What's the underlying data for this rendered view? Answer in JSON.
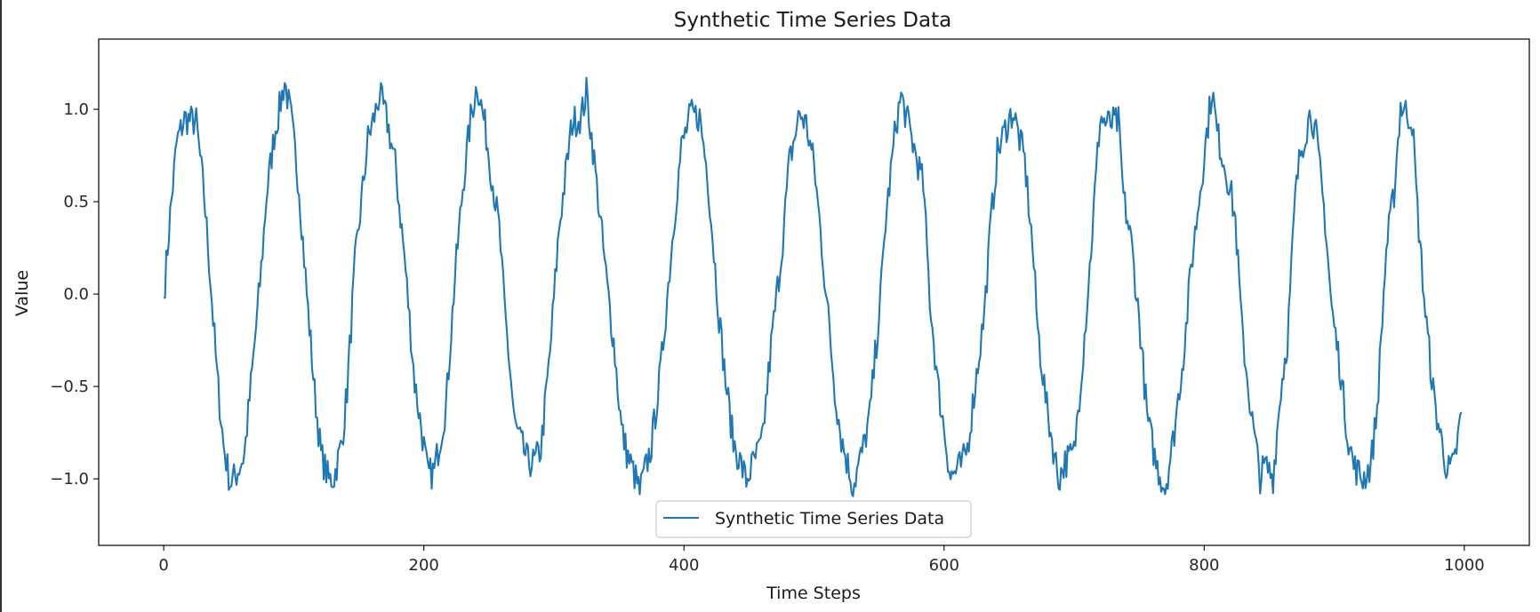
{
  "chart_data": {
    "type": "line",
    "title": "Synthetic Time Series Data",
    "xlabel": "Time Steps",
    "ylabel": "Value",
    "xlim": [
      -50,
      1050
    ],
    "ylim": [
      -1.36,
      1.38
    ],
    "xticks": [
      0,
      200,
      400,
      600,
      800,
      1000
    ],
    "yticks": [
      1.0,
      0.5,
      0.0,
      -0.5,
      -1.0
    ],
    "ytick_labels": [
      "1.0",
      "0.5",
      "0.0",
      "−0.5",
      "−1.0"
    ],
    "grid": false,
    "legend_position": "lower center",
    "series": [
      {
        "name": "Synthetic Time Series Data",
        "color": "#1f77b4",
        "period": 62.8,
        "x": [
          0,
          5,
          10,
          16,
          25,
          31,
          35,
          41,
          46,
          51,
          55,
          62,
          68,
          75,
          79,
          85,
          93,
          98,
          104,
          110,
          116,
          121,
          127,
          131,
          137,
          141,
          147,
          157,
          162,
          166,
          172,
          178,
          185,
          193,
          199,
          203,
          208,
          217,
          224,
          230,
          236,
          241,
          247,
          251,
          258,
          262,
          270,
          280,
          285,
          290,
          297,
          304,
          314,
          321,
          325,
          330,
          341,
          346,
          352,
          356,
          362,
          366,
          375,
          382,
          390,
          394,
          398,
          405,
          412,
          418,
          427,
          432,
          438,
          448,
          453,
          460,
          468,
          475,
          481,
          489,
          494,
          500,
          505,
          516,
          521,
          530,
          538,
          543,
          551,
          555,
          563,
          567,
          577,
          584,
          589,
          595,
          600,
          605,
          614,
          618,
          624,
          631,
          636,
          641,
          648,
          653,
          662,
          668,
          672,
          679,
          688,
          693,
          700,
          707,
          712,
          720,
          725,
          734,
          738,
          744,
          751,
          756,
          763,
          770,
          776,
          785,
          790,
          799,
          806,
          810,
          820,
          824,
          829,
          836,
          843,
          847,
          853,
          859,
          864,
          870,
          874,
          882,
          886,
          893,
          898,
          904,
          910,
          915,
          922,
          928,
          933,
          940,
          946,
          951,
          960,
          964,
          970,
          977,
          987,
          992,
          998
        ],
        "values": [
          -0.02,
          0.43,
          0.82,
          0.95,
          0.93,
          0.54,
          0.17,
          -0.44,
          -0.82,
          -1.02,
          -0.99,
          -0.87,
          -0.42,
          0.14,
          0.53,
          0.86,
          1.15,
          0.95,
          0.58,
          0.0,
          -0.53,
          -0.87,
          -1.01,
          -0.99,
          -0.8,
          -0.52,
          0.16,
          0.84,
          0.96,
          1.08,
          0.93,
          0.7,
          0.21,
          -0.48,
          -0.77,
          -0.98,
          -0.96,
          -0.61,
          0.1,
          0.58,
          0.95,
          1.14,
          0.91,
          0.7,
          0.35,
          -0.07,
          -0.71,
          -0.91,
          -0.91,
          -0.84,
          -0.32,
          0.36,
          0.93,
          0.96,
          1.09,
          0.79,
          0.04,
          -0.26,
          -0.73,
          -0.86,
          -0.98,
          -1.07,
          -0.82,
          -0.42,
          0.21,
          0.52,
          0.79,
          0.97,
          0.96,
          0.66,
          -0.12,
          -0.47,
          -0.8,
          -1.01,
          -0.92,
          -0.81,
          -0.21,
          0.22,
          0.71,
          0.98,
          0.92,
          0.7,
          0.34,
          -0.52,
          -0.78,
          -1.04,
          -0.83,
          -0.65,
          -0.03,
          0.39,
          0.92,
          1.07,
          0.79,
          0.59,
          -0.02,
          -0.48,
          -0.73,
          -0.99,
          -0.92,
          -0.83,
          -0.49,
          -0.1,
          0.39,
          0.76,
          0.91,
          0.99,
          0.72,
          0.26,
          -0.19,
          -0.62,
          -1.0,
          -0.91,
          -0.86,
          -0.31,
          0.14,
          0.96,
          0.92,
          0.93,
          0.52,
          0.28,
          -0.21,
          -0.66,
          -0.92,
          -1.05,
          -0.8,
          -0.27,
          0.15,
          0.69,
          1.11,
          0.87,
          0.57,
          0.4,
          -0.19,
          -0.64,
          -0.99,
          -0.93,
          -0.99,
          -0.51,
          -0.25,
          0.52,
          0.77,
          0.99,
          0.86,
          0.4,
          -0.08,
          -0.37,
          -0.75,
          -0.93,
          -1.0,
          -0.93,
          -0.62,
          0.24,
          0.55,
          1.02,
          0.94,
          0.45,
          -0.1,
          -0.59,
          -0.96,
          -0.93,
          -0.64
        ]
      }
    ]
  }
}
